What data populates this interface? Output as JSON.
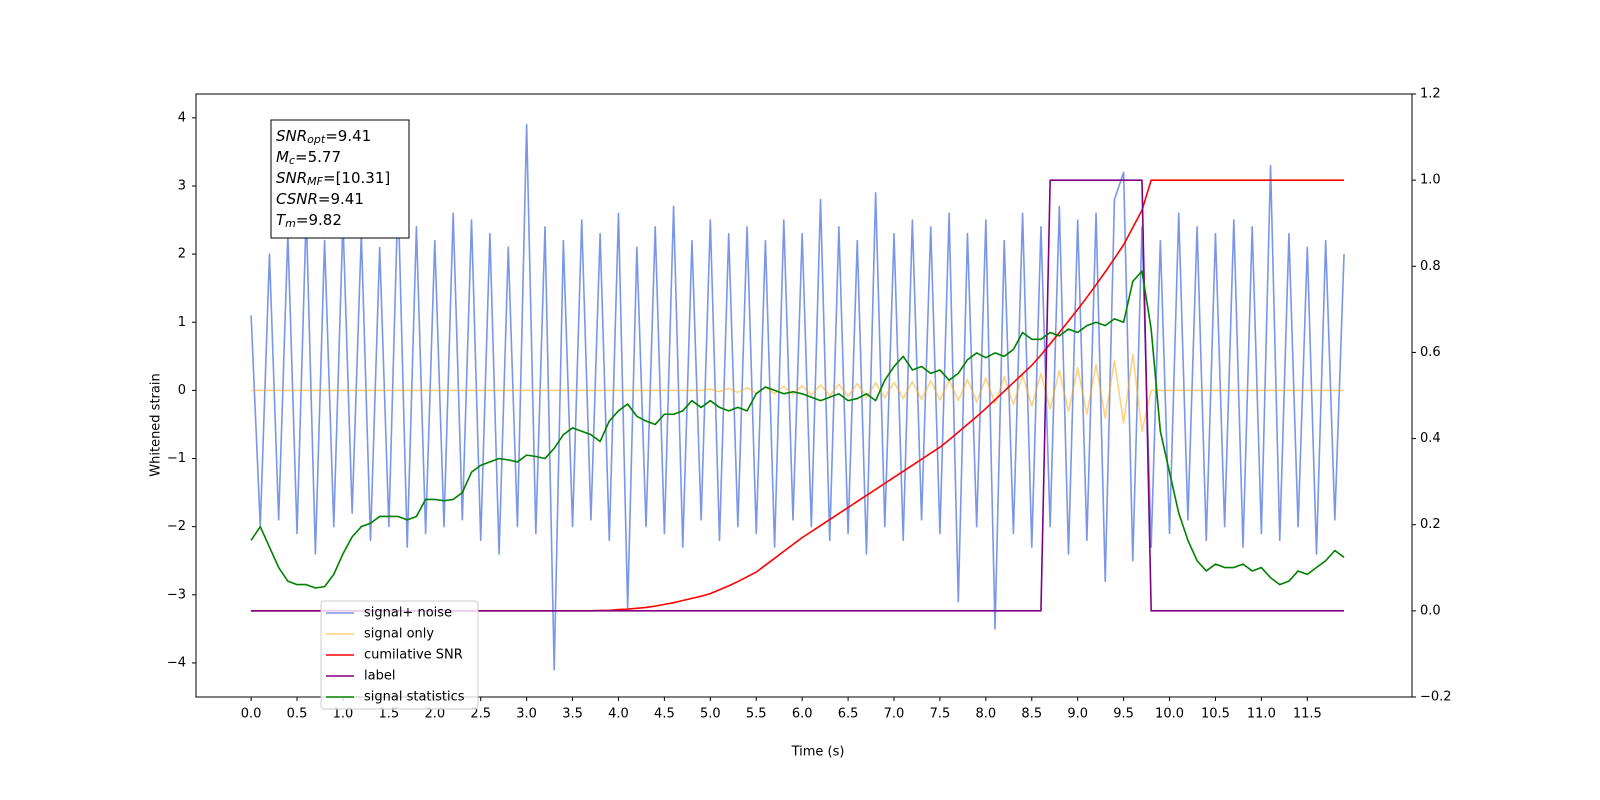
{
  "chart_data": {
    "type": "line",
    "xlabel": "Time (s)",
    "ylabel": "Whitened strain",
    "xlim": [
      -0.6,
      12.64
    ],
    "ylim": [
      -4.5,
      4.35
    ],
    "y2lim": [
      -0.2,
      1.2
    ],
    "xticks": [
      {
        "value": 0,
        "label": "0.0"
      },
      {
        "value": 0.5,
        "label": "0.5"
      },
      {
        "value": 1,
        "label": "1.0"
      },
      {
        "value": 1.5,
        "label": "1.5"
      },
      {
        "value": 2,
        "label": "2.0"
      },
      {
        "value": 2.5,
        "label": "2.5"
      },
      {
        "value": 3,
        "label": "3.0"
      },
      {
        "value": 3.5,
        "label": "3.5"
      },
      {
        "value": 4,
        "label": "4.0"
      },
      {
        "value": 4.5,
        "label": "4.5"
      },
      {
        "value": 5,
        "label": "5.0"
      },
      {
        "value": 5.5,
        "label": "5.5"
      },
      {
        "value": 6,
        "label": "6.0"
      },
      {
        "value": 6.5,
        "label": "6.5"
      },
      {
        "value": 7,
        "label": "7.0"
      },
      {
        "value": 7.5,
        "label": "7.5"
      },
      {
        "value": 8,
        "label": "8.0"
      },
      {
        "value": 8.5,
        "label": "8.5"
      },
      {
        "value": 9,
        "label": "9.0"
      },
      {
        "value": 9.5,
        "label": "9.5"
      },
      {
        "value": 10,
        "label": "10.0"
      },
      {
        "value": 10.5,
        "label": "10.5"
      },
      {
        "value": 11,
        "label": "11.0"
      },
      {
        "value": 11.5,
        "label": "11.5"
      }
    ],
    "yticks": [
      {
        "value": -4,
        "label": "−4"
      },
      {
        "value": -3,
        "label": "−3"
      },
      {
        "value": -2,
        "label": "−2"
      },
      {
        "value": -1,
        "label": "−1"
      },
      0,
      1,
      2,
      3,
      4
    ],
    "y2ticks": [
      {
        "value": -0.2,
        "label": "−0.2"
      },
      {
        "value": 0,
        "label": "0.0"
      },
      {
        "value": 0.2,
        "label": "0.2"
      },
      {
        "value": 0.4,
        "label": "0.4"
      },
      {
        "value": 0.6,
        "label": "0.6"
      },
      {
        "value": 0.8,
        "label": "0.8"
      },
      {
        "value": 1,
        "label": "1.0"
      },
      {
        "value": 1.2,
        "label": "1.2"
      }
    ],
    "grid": false,
    "legend": "lower left",
    "x": [
      0,
      0.1,
      0.2,
      0.3,
      0.4,
      0.5,
      0.6,
      0.7,
      0.8,
      0.9,
      1,
      1.1,
      1.2,
      1.3,
      1.4,
      1.5,
      1.6,
      1.7,
      1.8,
      1.9,
      2,
      2.1,
      2.2,
      2.3,
      2.4,
      2.5,
      2.6,
      2.7,
      2.8,
      2.9,
      3,
      3.1,
      3.2,
      3.3,
      3.4,
      3.5,
      3.6,
      3.7,
      3.8,
      3.9,
      4,
      4.1,
      4.2,
      4.3,
      4.4,
      4.5,
      4.6,
      4.7,
      4.8,
      4.9,
      5,
      5.1,
      5.2,
      5.3,
      5.4,
      5.5,
      5.6,
      5.7,
      5.8,
      5.9,
      6,
      6.1,
      6.2,
      6.3,
      6.4,
      6.5,
      6.6,
      6.7,
      6.8,
      6.9,
      7,
      7.1,
      7.2,
      7.3,
      7.4,
      7.5,
      7.6,
      7.7,
      7.8,
      7.9,
      8,
      8.1,
      8.2,
      8.3,
      8.4,
      8.5,
      8.6,
      8.7,
      8.8,
      8.9,
      9,
      9.1,
      9.2,
      9.3,
      9.4,
      9.5,
      9.6,
      9.7,
      9.8,
      9.9,
      10,
      10.1,
      10.2,
      10.3,
      10.4,
      10.5,
      10.6,
      10.7,
      10.8,
      10.9,
      11,
      11.1,
      11.2,
      11.3,
      11.4,
      11.5,
      11.6,
      11.7,
      11.8,
      11.9
    ],
    "series": [
      {
        "name": "signal+ noise",
        "color": "#4169e1",
        "opacity": 0.7,
        "values": [
          1.1,
          -2.0,
          2.0,
          -1.9,
          2.3,
          -2.1,
          2.6,
          -2.4,
          2.2,
          -2.0,
          2.5,
          -1.8,
          2.3,
          -2.2,
          2.1,
          -2.0,
          2.9,
          -2.3,
          2.4,
          -2.1,
          2.2,
          -2.0,
          2.6,
          -1.9,
          2.5,
          -2.2,
          2.3,
          -2.4,
          2.1,
          -2.0,
          3.9,
          -2.1,
          2.4,
          -4.1,
          2.2,
          -2.0,
          2.5,
          -1.9,
          2.3,
          -2.2,
          2.6,
          -3.2,
          2.1,
          -2.0,
          2.4,
          -2.1,
          2.7,
          -2.3,
          2.2,
          -1.9,
          2.5,
          -2.2,
          2.3,
          -2.0,
          2.4,
          -2.1,
          2.2,
          -2.3,
          2.5,
          -1.9,
          2.3,
          -2.0,
          2.8,
          -2.2,
          2.4,
          -2.1,
          2.2,
          -2.4,
          2.9,
          -2.0,
          2.3,
          -2.2,
          2.5,
          -1.9,
          2.4,
          -2.1,
          2.6,
          -3.1,
          2.3,
          -2.0,
          2.5,
          -3.5,
          2.2,
          -2.1,
          2.6,
          -2.3,
          2.4,
          -2.0,
          2.7,
          -2.4,
          2.5,
          -2.2,
          2.6,
          -2.8,
          2.8,
          3.2,
          -2.5,
          2.4,
          -2.3,
          2.2,
          -2.1,
          2.6,
          -1.9,
          2.4,
          -2.2,
          2.3,
          -2.0,
          2.5,
          -2.3,
          2.4,
          -2.1,
          3.3,
          -2.2,
          2.3,
          -2.0,
          2.1,
          -2.4,
          2.2,
          -1.9,
          2.0
        ]
      },
      {
        "name": "signal only",
        "color": "orange",
        "opacity": 0.5,
        "values": [
          0,
          0,
          0,
          0,
          0,
          0,
          0,
          0,
          0,
          0,
          0,
          0,
          0,
          0,
          0,
          0,
          0,
          0,
          0,
          0,
          0,
          0,
          0,
          0,
          0,
          0,
          0,
          0,
          0,
          0,
          0,
          0,
          0,
          0,
          0,
          0,
          0,
          0,
          0,
          0,
          0,
          0,
          0,
          0,
          0,
          0,
          0,
          0,
          0,
          0,
          0.02,
          -0.02,
          0.03,
          -0.03,
          0.04,
          -0.04,
          0.05,
          -0.05,
          0.06,
          -0.06,
          0.07,
          -0.07,
          0.08,
          -0.08,
          0.09,
          -0.09,
          0.1,
          -0.1,
          0.11,
          -0.11,
          0.12,
          -0.12,
          0.13,
          -0.13,
          0.14,
          -0.14,
          0.15,
          -0.15,
          0.16,
          -0.17,
          0.18,
          -0.19,
          0.2,
          -0.21,
          0.22,
          -0.23,
          0.25,
          -0.27,
          0.29,
          -0.31,
          0.33,
          -0.35,
          0.38,
          -0.41,
          0.44,
          -0.48,
          0.53,
          -0.6,
          0,
          0,
          0,
          0,
          0,
          0,
          0,
          0,
          0,
          0,
          0,
          0,
          0,
          0,
          0,
          0,
          0,
          0,
          0,
          0,
          0,
          0
        ]
      },
      {
        "name": "cumilative SNR",
        "color": "red",
        "axis": "y2",
        "values": [
          0,
          0,
          0,
          0,
          0,
          0,
          0,
          0,
          0,
          0,
          0,
          0,
          0,
          0,
          0,
          0,
          0,
          0,
          0,
          0,
          0,
          0,
          0,
          0,
          0,
          0,
          0,
          0,
          0,
          0,
          0,
          0,
          0,
          0,
          0,
          0,
          0,
          0,
          0.001,
          0.001,
          0.003,
          0.004,
          0.006,
          0.008,
          0.011,
          0.015,
          0.019,
          0.024,
          0.029,
          0.034,
          0.04,
          0.049,
          0.058,
          0.068,
          0.079,
          0.09,
          0.106,
          0.122,
          0.138,
          0.154,
          0.17,
          0.184,
          0.198,
          0.212,
          0.226,
          0.24,
          0.254,
          0.268,
          0.282,
          0.296,
          0.31,
          0.324,
          0.338,
          0.352,
          0.366,
          0.38,
          0.397,
          0.415,
          0.433,
          0.451,
          0.47,
          0.49,
          0.51,
          0.53,
          0.55,
          0.57,
          0.594,
          0.62,
          0.646,
          0.673,
          0.7,
          0.728,
          0.757,
          0.787,
          0.818,
          0.85,
          0.89,
          0.93,
          1,
          1,
          1,
          1,
          1,
          1,
          1,
          1,
          1,
          1,
          1,
          1,
          1,
          1,
          1,
          1,
          1,
          1,
          1,
          1,
          1,
          1
        ]
      },
      {
        "name": "label",
        "color": "purple",
        "axis": "y2",
        "values": [
          0,
          0,
          0,
          0,
          0,
          0,
          0,
          0,
          0,
          0,
          0,
          0,
          0,
          0,
          0,
          0,
          0,
          0,
          0,
          0,
          0,
          0,
          0,
          0,
          0,
          0,
          0,
          0,
          0,
          0,
          0,
          0,
          0,
          0,
          0,
          0,
          0,
          0,
          0,
          0,
          0,
          0,
          0,
          0,
          0,
          0,
          0,
          0,
          0,
          0,
          0,
          0,
          0,
          0,
          0,
          0,
          0,
          0,
          0,
          0,
          0,
          0,
          0,
          0,
          0,
          0,
          0,
          0,
          0,
          0,
          0,
          0,
          0,
          0,
          0,
          0,
          0,
          0,
          0,
          0,
          0,
          0,
          0,
          0,
          0,
          0,
          0,
          1,
          1,
          1,
          1,
          1,
          1,
          1,
          1,
          1,
          1,
          1,
          0,
          0,
          0,
          0,
          0,
          0,
          0,
          0,
          0,
          0,
          0,
          0,
          0,
          0,
          0,
          0,
          0,
          0,
          0,
          0,
          0,
          0
        ]
      },
      {
        "name": "signal statistics",
        "color": "green",
        "values": [
          -2.2,
          -2.0,
          -2.3,
          -2.6,
          -2.8,
          -2.85,
          -2.85,
          -2.9,
          -2.88,
          -2.7,
          -2.4,
          -2.15,
          -2.0,
          -1.95,
          -1.85,
          -1.85,
          -1.85,
          -1.9,
          -1.85,
          -1.6,
          -1.6,
          -1.62,
          -1.6,
          -1.5,
          -1.2,
          -1.1,
          -1.05,
          -1.0,
          -1.02,
          -1.05,
          -0.95,
          -0.97,
          -1.0,
          -0.85,
          -0.65,
          -0.55,
          -0.6,
          -0.65,
          -0.75,
          -0.45,
          -0.3,
          -0.2,
          -0.38,
          -0.45,
          -0.5,
          -0.35,
          -0.35,
          -0.3,
          -0.15,
          -0.25,
          -0.15,
          -0.25,
          -0.3,
          -0.25,
          -0.3,
          -0.05,
          0.05,
          0.0,
          -0.05,
          -0.02,
          -0.05,
          -0.1,
          -0.15,
          -0.1,
          -0.05,
          -0.15,
          -0.12,
          -0.05,
          -0.15,
          0.15,
          0.35,
          0.5,
          0.3,
          0.35,
          0.25,
          0.3,
          0.15,
          0.25,
          0.45,
          0.55,
          0.48,
          0.55,
          0.5,
          0.6,
          0.85,
          0.75,
          0.75,
          0.85,
          0.8,
          0.9,
          0.85,
          0.95,
          1.0,
          0.95,
          1.05,
          1.0,
          1.6,
          1.75,
          0.9,
          -0.6,
          -1.2,
          -1.8,
          -2.2,
          -2.5,
          -2.65,
          -2.55,
          -2.6,
          -2.6,
          -2.55,
          -2.65,
          -2.6,
          -2.75,
          -2.85,
          -2.8,
          -2.65,
          -2.7,
          -2.6,
          -2.5,
          -2.35,
          -2.45
        ]
      }
    ],
    "annotations": [
      {
        "symbol": "SNR",
        "sub": "opt",
        "text": "=9.41"
      },
      {
        "symbol": "M",
        "sub": "c",
        "text": "=5.77"
      },
      {
        "symbol": "SNR",
        "sub": "MF",
        "text": "=[10.31]"
      },
      {
        "symbol": "CSNR",
        "text": "=9.41"
      },
      {
        "symbol": "T",
        "sub": "m",
        "text": "=9.82"
      }
    ]
  }
}
